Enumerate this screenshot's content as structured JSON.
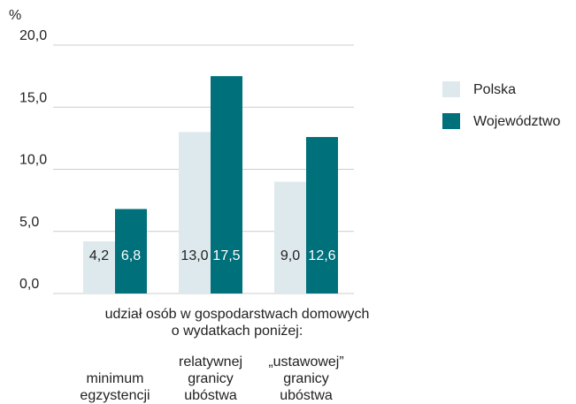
{
  "chart_data": {
    "type": "bar",
    "ylabel": "%",
    "xlabel": [
      "udział osób w gospodarstwach domowych",
      "o wydatkach poniżej:"
    ],
    "categories": [
      [
        "minimum",
        "egzystencji"
      ],
      [
        "relatywnej",
        "granicy",
        "ubóstwa"
      ],
      [
        "„ustawowej”",
        "granicy",
        "ubóstwa"
      ]
    ],
    "series": [
      {
        "name": "Polska",
        "color": "#dde9ec",
        "label_color": "#222222",
        "values": [
          4.2,
          13.0,
          9.0
        ],
        "value_labels": [
          "4,2",
          "13,0",
          "9,0"
        ]
      },
      {
        "name": "Województwo",
        "color": "#00707a",
        "label_color": "#ffffff",
        "values": [
          6.8,
          17.5,
          12.6
        ],
        "value_labels": [
          "6,8",
          "17,5",
          "12,6"
        ]
      }
    ],
    "ylim": [
      0,
      20
    ],
    "yticks": [
      {
        "value": 0,
        "label": "0,0"
      },
      {
        "value": 5,
        "label": "5,0"
      },
      {
        "value": 10,
        "label": "10,0"
      },
      {
        "value": 15,
        "label": "15,0"
      },
      {
        "value": 20,
        "label": "20,0"
      }
    ],
    "grid": true,
    "legend": "right"
  }
}
